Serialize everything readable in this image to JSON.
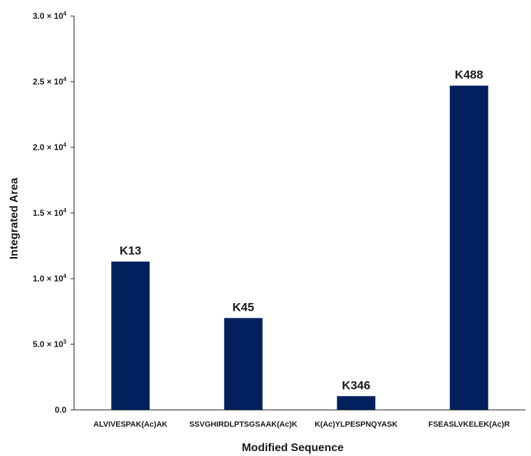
{
  "chart_data": {
    "type": "bar",
    "title": "",
    "xlabel": "Modified Sequence",
    "ylabel": "Integrated Area",
    "ylim": [
      0,
      30000
    ],
    "yticks": [
      {
        "value": 0,
        "mant": "0.0",
        "exp": ""
      },
      {
        "value": 5000,
        "mant": "5.0 × 10",
        "exp": "3"
      },
      {
        "value": 10000,
        "mant": "1.0 × 10",
        "exp": "4"
      },
      {
        "value": 15000,
        "mant": "1.5 × 10",
        "exp": "4"
      },
      {
        "value": 20000,
        "mant": "2.0 × 10",
        "exp": "4"
      },
      {
        "value": 25000,
        "mant": "2.5 × 10",
        "exp": "4"
      },
      {
        "value": 30000,
        "mant": "3.0 × 10",
        "exp": "4"
      }
    ],
    "categories": [
      "ALVIVESPAK(Ac)AK",
      "SSVGHIRDLPTSGSAAK(Ac)K",
      "K(Ac)YLPESPNQYASK",
      "FSEASLVKELEK(Ac)R"
    ],
    "values": [
      11300,
      7000,
      1050,
      24700
    ],
    "bar_labels": [
      "K13",
      "K45",
      "K346",
      "K488"
    ],
    "bar_color": "#03205e",
    "grid": false,
    "legend": "none"
  }
}
